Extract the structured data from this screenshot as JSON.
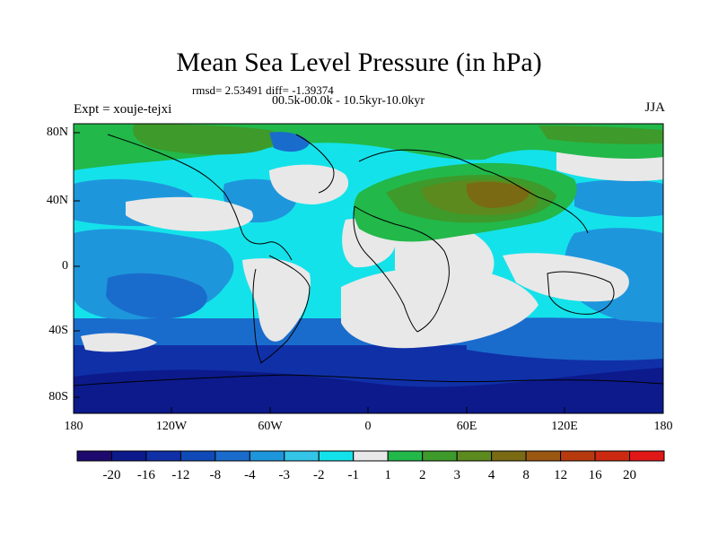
{
  "title": "Mean Sea Level Pressure (in hPa)",
  "stats": "rmsd= 2.53491 diff= -1.39374",
  "period": "00.5k-00.0k - 10.5kyr-10.0kyr",
  "experiment": "Expt = xouje-tejxi",
  "season": "JJA",
  "lat_ticks": [
    "80N",
    "40N",
    "0",
    "40S",
    "80S"
  ],
  "lon_ticks": [
    "180",
    "120W",
    "60W",
    "0",
    "60E",
    "120E",
    "180"
  ],
  "colorbar": {
    "labels": [
      "-20",
      "-16",
      "-12",
      "-8",
      "-4",
      "-3",
      "-2",
      "-1",
      "1",
      "2",
      "3",
      "4",
      "8",
      "12",
      "16",
      "20"
    ],
    "colors": [
      "#1e0a6e",
      "#0c1a8c",
      "#1030a8",
      "#0f4ab8",
      "#1a6ccc",
      "#1e96dc",
      "#33c4e8",
      "#14e2ea",
      "#e8e8e8",
      "#22b84a",
      "#3e9a2a",
      "#5c8a1e",
      "#7a6a14",
      "#9a5812",
      "#b63a0e",
      "#cc2a10",
      "#e01818"
    ]
  },
  "colors": {
    "ocean_default": "#14e2ea",
    "neutral": "#e8e8e8",
    "coast": "#000000"
  }
}
